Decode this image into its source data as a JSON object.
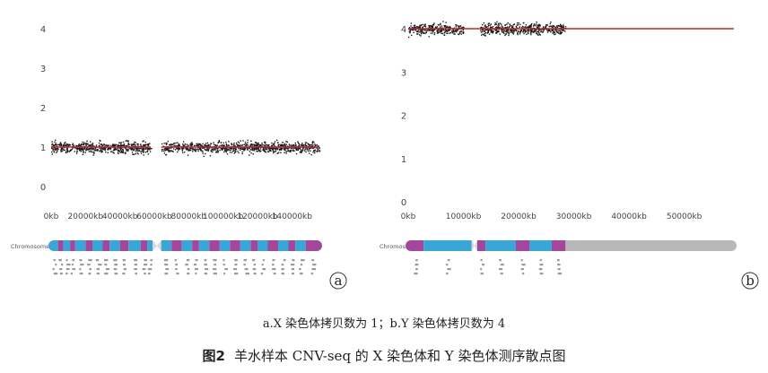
{
  "caption": {
    "sub": "a.X 染色体拷贝数为 1；b.Y 染色体拷贝数为 4",
    "figure_number": "图2",
    "title": "羊水样本 CNV-seq 的 X 染色体和 Y 染色体测序散点图"
  },
  "colors": {
    "points": "#1a1a1a",
    "mean_line": "#c0282d",
    "band_blue": "#3aa6d8",
    "band_magenta": "#a3479b",
    "band_gray": "#b8b8b8",
    "centromere": "#d8d8d8"
  },
  "chart_data": [
    {
      "type": "scatter",
      "panel_label": "a",
      "chromosome_label": "ChromosomeX",
      "y_ticks": [
        "0",
        "1",
        "2",
        "3",
        "4"
      ],
      "ylim": [
        0,
        4
      ],
      "x_tick_labels": [
        "0kb",
        "20000kb",
        "40000kb",
        "60000kb",
        "80000kb",
        "100000kb",
        "120000kb",
        "140000kb"
      ],
      "x_ticks": [
        0,
        20000,
        40000,
        60000,
        80000,
        100000,
        120000,
        140000
      ],
      "xlim": [
        0,
        156000
      ],
      "series": [
        {
          "copy_number": 1,
          "segments": [
            [
              0,
              58000
            ],
            [
              64000,
              156000
            ]
          ]
        }
      ],
      "ideogram": [
        [
          "b",
          0,
          4000
        ],
        [
          "m",
          4000,
          7000
        ],
        [
          "b",
          7000,
          11000
        ],
        [
          "m",
          11000,
          14000
        ],
        [
          "b",
          14000,
          20000
        ],
        [
          "m",
          20000,
          24000
        ],
        [
          "b",
          24000,
          30000
        ],
        [
          "m",
          30000,
          34000
        ],
        [
          "b",
          34000,
          40000
        ],
        [
          "m",
          40000,
          45000
        ],
        [
          "b",
          45000,
          52000
        ],
        [
          "m",
          52000,
          56000
        ],
        [
          "b",
          56000,
          59000
        ],
        [
          "c",
          59000,
          64000
        ],
        [
          "b",
          64000,
          70000
        ],
        [
          "m",
          70000,
          76000
        ],
        [
          "b",
          76000,
          82000
        ],
        [
          "m",
          82000,
          86000
        ],
        [
          "b",
          86000,
          92000
        ],
        [
          "m",
          92000,
          98000
        ],
        [
          "b",
          98000,
          104000
        ],
        [
          "m",
          104000,
          110000
        ],
        [
          "b",
          110000,
          116000
        ],
        [
          "m",
          116000,
          120000
        ],
        [
          "b",
          120000,
          126000
        ],
        [
          "m",
          126000,
          132000
        ],
        [
          "b",
          132000,
          138000
        ],
        [
          "m",
          138000,
          142000
        ],
        [
          "b",
          142000,
          148000
        ],
        [
          "m",
          148000,
          156000
        ]
      ]
    },
    {
      "type": "scatter",
      "panel_label": "b",
      "chromosome_label": "ChromosomeY",
      "y_ticks": [
        "0",
        "1",
        "2",
        "3",
        "4"
      ],
      "ylim": [
        0,
        4
      ],
      "x_tick_labels": [
        "0kb",
        "10000kb",
        "20000kb",
        "30000kb",
        "40000kb",
        "50000kb"
      ],
      "x_ticks": [
        0,
        10000,
        20000,
        30000,
        40000,
        50000
      ],
      "xlim": [
        0,
        59000
      ],
      "series": [
        {
          "copy_number": 4,
          "segments": [
            [
              0,
              10000
            ],
            [
              13000,
              28500
            ]
          ]
        }
      ],
      "mean_line_extent": [
        0,
        59000
      ],
      "ideogram": [
        [
          "m",
          0,
          2800
        ],
        [
          "b",
          2800,
          11500
        ],
        [
          "c",
          11500,
          12500
        ],
        [
          "m",
          12500,
          14000
        ],
        [
          "b",
          14000,
          19500
        ],
        [
          "m",
          19500,
          22000
        ],
        [
          "b",
          22000,
          26000
        ],
        [
          "m",
          26000,
          28500
        ],
        [
          "g",
          28500,
          59000
        ]
      ]
    }
  ]
}
